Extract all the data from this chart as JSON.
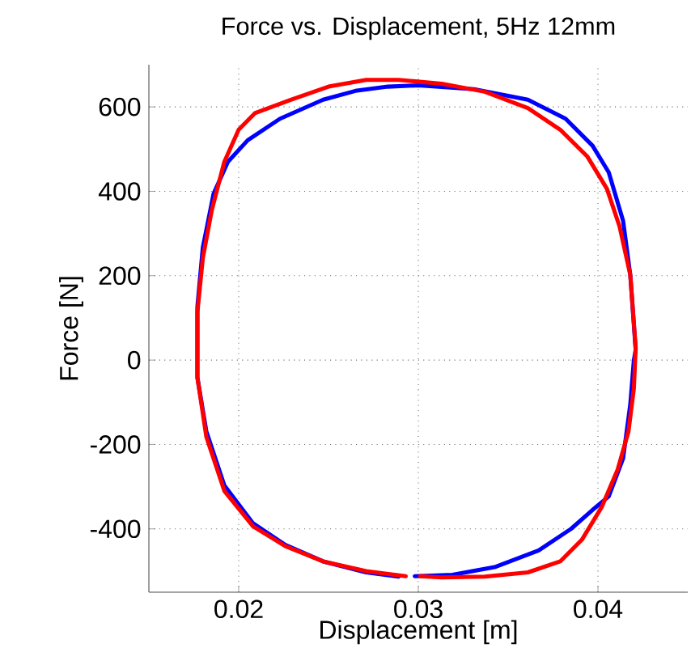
{
  "chart_data": {
    "type": "line",
    "title": "Force vs. Displacement, 5Hz 12mm",
    "xlabel": "Displacement [m]",
    "ylabel": "Force [N]",
    "xlim": [
      0.015,
      0.045
    ],
    "ylim": [
      -550,
      700
    ],
    "xticks": [
      0.02,
      0.03,
      0.04
    ],
    "yticks": [
      -400,
      -200,
      0,
      200,
      400,
      600
    ],
    "grid": true,
    "marker": "none",
    "line_style": "solid",
    "series": [
      {
        "color": "#0000ff",
        "x": [
          0.0298,
          0.0319,
          0.0343,
          0.0367,
          0.0385,
          0.0397,
          0.0406,
          0.0414,
          0.0418,
          0.042,
          0.0421,
          0.0418,
          0.0414,
          0.0406,
          0.0397,
          0.0382,
          0.0361,
          0.0331,
          0.03,
          0.0283,
          0.0265,
          0.0247,
          0.0223,
          0.0205,
          0.0194,
          0.0186,
          0.018,
          0.0177,
          0.0177,
          0.0182,
          0.0192,
          0.0208,
          0.0226,
          0.0247,
          0.0271,
          0.0289
        ],
        "values": [
          -512,
          -509,
          -490,
          -451,
          -400,
          -355,
          -323,
          -233,
          -105,
          0,
          24,
          202,
          330,
          445,
          508,
          572,
          617,
          642,
          651,
          648,
          638,
          617,
          572,
          521,
          470,
          394,
          266,
          126,
          -41,
          -169,
          -297,
          -387,
          -438,
          -477,
          -503,
          -513
        ]
      },
      {
        "color": "#ff0000",
        "x": [
          0.0301,
          0.0313,
          0.0337,
          0.0361,
          0.0379,
          0.0391,
          0.0402,
          0.0411,
          0.0417,
          0.042,
          0.0421,
          0.0418,
          0.0412,
          0.0405,
          0.0394,
          0.0379,
          0.0361,
          0.0337,
          0.0313,
          0.0289,
          0.0271,
          0.025,
          0.0229,
          0.0209,
          0.02,
          0.0192,
          0.0185,
          0.018,
          0.0177,
          0.0177,
          0.0182,
          0.0192,
          0.0208,
          0.0226,
          0.0247,
          0.0271,
          0.0293
        ],
        "values": [
          -512,
          -515,
          -513,
          -503,
          -477,
          -426,
          -349,
          -259,
          -169,
          -67,
          30,
          202,
          317,
          406,
          483,
          546,
          597,
          636,
          655,
          664,
          664,
          648,
          617,
          585,
          546,
          470,
          355,
          241,
          113,
          -41,
          -182,
          -310,
          -394,
          -441,
          -477,
          -500,
          -512
        ]
      }
    ]
  }
}
